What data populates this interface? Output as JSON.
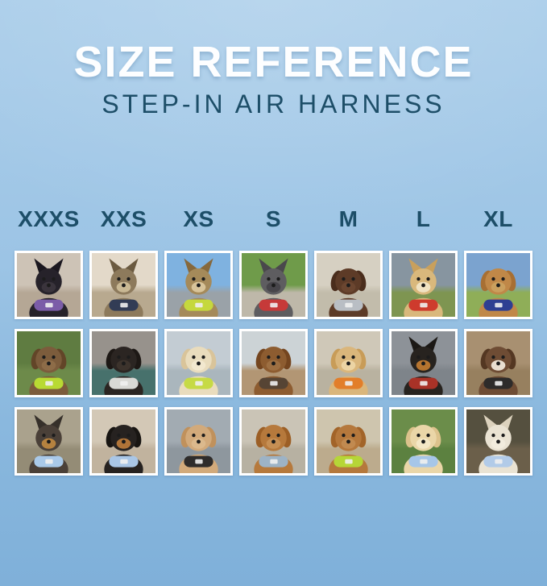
{
  "background": {
    "top": "#abceea",
    "bottom": "#7fb0d9"
  },
  "colors": {
    "title_text": "#fdfeff",
    "accent_teal": "#1d4e68",
    "photo_frame": "#ffffff"
  },
  "header": {
    "title": "SIZE REFERENCE",
    "subtitle": "STEP-IN AIR HARNESS"
  },
  "sizes": [
    {
      "label": "XXXS"
    },
    {
      "label": "XXS"
    },
    {
      "label": "XS"
    },
    {
      "label": "S"
    },
    {
      "label": "M"
    },
    {
      "label": "L"
    },
    {
      "label": "XL"
    }
  ],
  "grid": {
    "rows": [
      {
        "cells": [
          {
            "size": "XXXS",
            "desc": "black kitten wearing purple harness indoors by white railing",
            "ears": "pointy",
            "fur": "#26222a",
            "ear_fur": "#1a171f",
            "muzzle": "#3a343c",
            "harness": "#7b5ca8",
            "sky": "#cdc3b6",
            "ground": "#b5a795"
          },
          {
            "size": "XXS",
            "desc": "brown tabby cat wearing navy harness looking out bright window",
            "ears": "pointy",
            "fur": "#8d7a5c",
            "ear_fur": "#6b5a40",
            "muzzle": "#c9b894",
            "harness": "#323c55",
            "sky": "#e3d9c9",
            "ground": "#b8a98f"
          },
          {
            "size": "XS",
            "desc": "bengal cat wearing lime yellow harness inside car with sky through windows",
            "ears": "pointy",
            "fur": "#a58a5a",
            "ear_fur": "#86683c",
            "muzzle": "#d8c49a",
            "harness": "#c5d83e",
            "sky": "#7fb2e0",
            "ground": "#9aa2a8"
          },
          {
            "size": "S",
            "desc": "gray french bulldog wearing red harness standing on sidewalk by grass",
            "ears": "pointy",
            "fur": "#5e5d60",
            "ear_fur": "#4a484c",
            "muzzle": "#47454a",
            "harness": "#c63a39",
            "sky": "#6f9b4a",
            "ground": "#beb8a9"
          },
          {
            "size": "M",
            "desc": "chocolate brown spaniel wearing gray harness sitting on pavement",
            "ears": "floppy",
            "fur": "#5d3b27",
            "ear_fur": "#4a2d1c",
            "muzzle": "#6b4630",
            "harness": "#b9bec4",
            "sky": "#d6d0c2",
            "ground": "#c2bcab"
          },
          {
            "size": "L",
            "desc": "cream shiba inu wearing red harness holding red ball in grassy field",
            "ears": "pointy",
            "fur": "#d9b87c",
            "ear_fur": "#c9a05c",
            "muzzle": "#f0e2c2",
            "harness": "#ce3b2d",
            "sky": "#8795a0",
            "ground": "#7e9551"
          },
          {
            "size": "XL",
            "desc": "golden retriever wearing navy blue harness on path with yellow flowers",
            "ears": "floppy",
            "fur": "#c08848",
            "ear_fur": "#a76f33",
            "muzzle": "#caa05e",
            "harness": "#2e3f92",
            "sky": "#7ba3cf",
            "ground": "#8fae58"
          }
        ]
      },
      {
        "cells": [
          {
            "size": "XXXS",
            "desc": "shaggy brown dachshund wearing lime green harness in garden",
            "ears": "floppy",
            "fur": "#7c5c3c",
            "ear_fur": "#624528",
            "muzzle": "#8d6c48",
            "harness": "#b8da33",
            "sky": "#5f7c41",
            "ground": "#6d8a4a"
          },
          {
            "size": "XXS",
            "desc": "black puppy wearing white harness sitting on teal blanket in car",
            "ears": "floppy",
            "fur": "#2b2522",
            "ear_fur": "#1d1815",
            "muzzle": "#3c332c",
            "harness": "#d9d9d5",
            "sky": "#97928c",
            "ground": "#47716c"
          },
          {
            "size": "XS",
            "desc": "cream long-haired dachshund wearing lime green harness on boat",
            "ears": "floppy",
            "fur": "#e9dcbd",
            "ear_fur": "#d9c49a",
            "muzzle": "#f2e8cf",
            "harness": "#c6da45",
            "sky": "#c3ccd3",
            "ground": "#aab6bd"
          },
          {
            "size": "S",
            "desc": "brown long-haired dachshund wearing dark harness sitting on wooden dock",
            "ears": "floppy",
            "fur": "#8d5c30",
            "ear_fur": "#74451f",
            "muzzle": "#9d6f42",
            "harness": "#564434",
            "sky": "#ccd3d6",
            "ground": "#b29674"
          },
          {
            "size": "M",
            "desc": "smiling golden puppy wearing orange harness on patio by lawn",
            "ears": "floppy",
            "fur": "#dab67b",
            "ear_fur": "#c89c58",
            "muzzle": "#ecd4a4",
            "harness": "#e27e2a",
            "sky": "#cfc8b8",
            "ground": "#b9b2a0"
          },
          {
            "size": "L",
            "desc": "black and tan dog wearing red harness standing in corrugated metal tunnel",
            "ears": "pointy",
            "fur": "#27231f",
            "ear_fur": "#1b1815",
            "muzzle": "#b5742f",
            "harness": "#a93227",
            "sky": "#8d9298",
            "ground": "#7e848a"
          },
          {
            "size": "XL",
            "desc": "brown and white dog wearing black harness sitting on wooden steps",
            "ears": "floppy",
            "fur": "#6e4c34",
            "ear_fur": "#543722",
            "muzzle": "#e8ded0",
            "harness": "#2d2b2a",
            "sky": "#a89071",
            "ground": "#97805f"
          }
        ]
      },
      {
        "cells": [
          {
            "size": "XXXS",
            "desc": "yorkshire terrier wearing light blue harness sitting on sunny path",
            "ears": "pointy",
            "fur": "#4a4038",
            "ear_fur": "#36302a",
            "muzzle": "#b5823f",
            "harness": "#a9c9e9",
            "sky": "#aaa28d",
            "ground": "#948c76"
          },
          {
            "size": "XXS",
            "desc": "black and tan long-haired dachshund wearing light blue harness on beige couch",
            "ears": "floppy",
            "fur": "#262220",
            "ear_fur": "#181512",
            "muzzle": "#b07438",
            "harness": "#a9c6e6",
            "sky": "#d3c8b6",
            "ground": "#c1b39e"
          },
          {
            "size": "XS",
            "desc": "apricot poodle puppy wearing black harness on gray deck",
            "ears": "floppy",
            "fur": "#d2aa7b",
            "ear_fur": "#c0915c",
            "muzzle": "#dbb98d",
            "harness": "#2e2c2b",
            "sky": "#a2abb2",
            "ground": "#8e979e"
          },
          {
            "size": "S",
            "desc": "tan dachshund wearing gray blue harness standing on pavement",
            "ears": "floppy",
            "fur": "#b6793c",
            "ear_fur": "#9c5f26",
            "muzzle": "#c68f54",
            "harness": "#9db3c6",
            "sky": "#cac4b6",
            "ground": "#b7b1a2"
          },
          {
            "size": "M",
            "desc": "red goldendoodle wearing lime green harness sitting on sidewalk",
            "ears": "floppy",
            "fur": "#b5783c",
            "ear_fur": "#a26429",
            "muzzle": "#c18a50",
            "harness": "#b6d637",
            "sky": "#cec5ae",
            "ground": "#bcab8d"
          },
          {
            "size": "L",
            "desc": "cream golden retriever puppy wearing light blue harness and leash on grass",
            "ears": "floppy",
            "fur": "#ead6a8",
            "ear_fur": "#dcc28c",
            "muzzle": "#f4e7c6",
            "harness": "#a6c6e8",
            "sky": "#6b8d4a",
            "ground": "#5c8140"
          },
          {
            "size": "XL",
            "desc": "white shepherd dog wearing light blue harness on city sidewalk at night",
            "ears": "pointy",
            "fur": "#eae3d3",
            "ear_fur": "#dcd2bd",
            "muzzle": "#f2ecdd",
            "harness": "#b2cbe8",
            "sky": "#55503f",
            "ground": "#6b5f4a"
          }
        ]
      }
    ]
  }
}
